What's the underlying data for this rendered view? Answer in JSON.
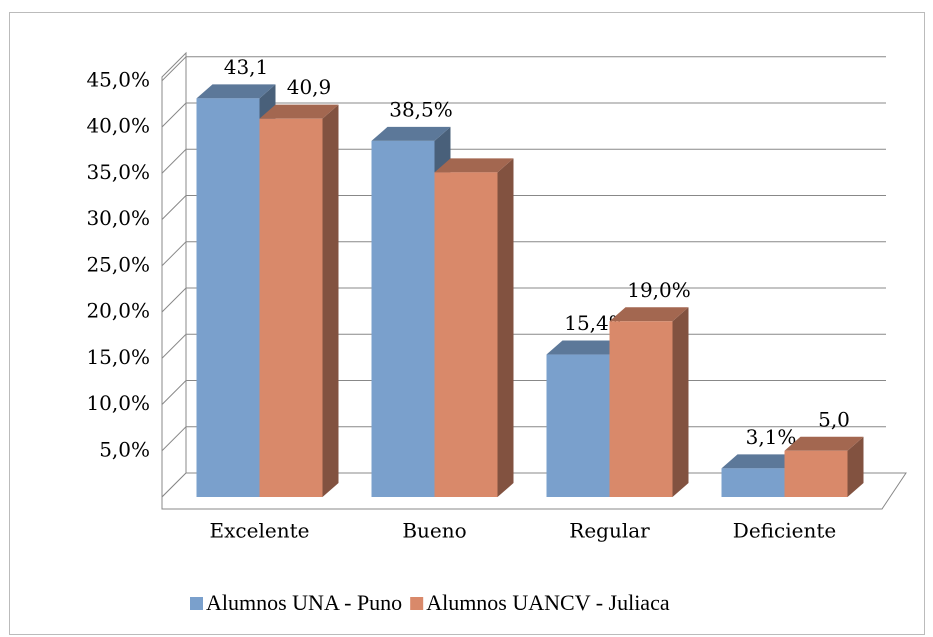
{
  "chart_data": {
    "type": "bar3d",
    "categories": [
      "Excelente",
      "Bueno",
      "Regular",
      "Deficiente"
    ],
    "series": [
      {
        "name": "Alumnos UNA - Puno",
        "color": "#7aa0cc",
        "values": [
          43.1,
          38.5,
          15.4,
          3.1
        ],
        "value_labels": [
          "43,1",
          "38,5%",
          "15,4%",
          "3,1%"
        ]
      },
      {
        "name": "Alumnos UANCV - Juliaca",
        "color": "#d9896a",
        "values": [
          40.9,
          35.1,
          19.0,
          5.0
        ],
        "value_labels": [
          "40,9",
          null,
          "19,0%",
          "5,0"
        ]
      }
    ],
    "ylim": [
      0,
      48
    ],
    "yticks": [
      {
        "value": 5,
        "label": "5,0%"
      },
      {
        "value": 10,
        "label": "10,0%"
      },
      {
        "value": 15,
        "label": "15,0%"
      },
      {
        "value": 20,
        "label": "20,0%"
      },
      {
        "value": 25,
        "label": "25,0%"
      },
      {
        "value": 30,
        "label": "30,0%"
      },
      {
        "value": 35,
        "label": "35,0%"
      },
      {
        "value": 40,
        "label": "40,0%"
      },
      {
        "value": 45,
        "label": "45,0%"
      }
    ],
    "grid": true,
    "legend": "bottom"
  }
}
